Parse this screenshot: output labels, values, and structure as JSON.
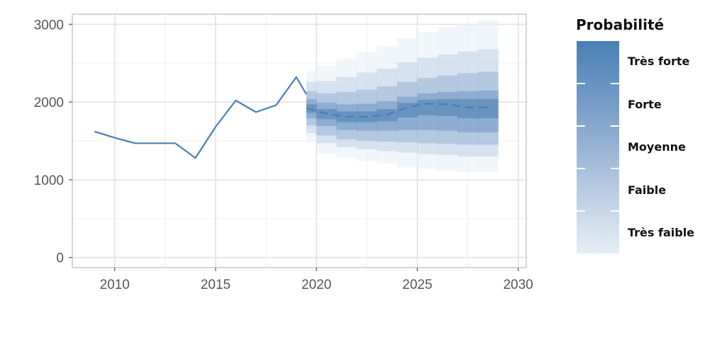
{
  "chart_data": {
    "type": "line",
    "title": "",
    "xlabel": "",
    "ylabel": "",
    "xlim": [
      2007.9,
      2030.4
    ],
    "ylim": [
      -130,
      3130
    ],
    "x_ticks": [
      2010,
      2015,
      2020,
      2025,
      2030
    ],
    "x_tick_labels": [
      "2010",
      "2015",
      "2020",
      "2025",
      "2030"
    ],
    "y_ticks": [
      0,
      1000,
      2000,
      3000
    ],
    "y_tick_labels": [
      "0",
      "1000",
      "2000",
      "3000"
    ],
    "grid": true,
    "line_color": "#4a7fb5",
    "historical": {
      "x": [
        2009,
        2010,
        2011,
        2012,
        2013,
        2014,
        2015,
        2016,
        2017,
        2018,
        2019,
        2019.5
      ],
      "y": [
        1620,
        1540,
        1470,
        1470,
        1470,
        1280,
        1680,
        2020,
        1870,
        1960,
        2320,
        2100
      ]
    },
    "forecast": {
      "line_style": "dashed",
      "x": [
        2019.5,
        2020.5,
        2021.5,
        2022.5,
        2023.5,
        2024.5,
        2025.5,
        2026.5,
        2027.5,
        2028.5
      ],
      "median": [
        1920,
        1850,
        1810,
        1810,
        1840,
        1930,
        1980,
        1970,
        1930,
        1930
      ],
      "bands": [
        {
          "level": "Très faible",
          "low": [
            1480,
            1330,
            1280,
            1240,
            1210,
            1160,
            1140,
            1120,
            1100,
            1100
          ],
          "high": [
            2400,
            2470,
            2560,
            2640,
            2720,
            2820,
            2900,
            2960,
            3010,
            3050
          ]
        },
        {
          "level": "Faible",
          "low": [
            1600,
            1470,
            1420,
            1390,
            1370,
            1350,
            1330,
            1320,
            1300,
            1300
          ],
          "high": [
            2260,
            2270,
            2320,
            2380,
            2430,
            2510,
            2570,
            2610,
            2650,
            2680
          ]
        },
        {
          "level": "Moyenne",
          "low": [
            1700,
            1570,
            1520,
            1500,
            1490,
            1480,
            1470,
            1460,
            1450,
            1450
          ],
          "high": [
            2140,
            2110,
            2130,
            2160,
            2200,
            2260,
            2310,
            2340,
            2370,
            2390
          ]
        },
        {
          "level": "Forte",
          "low": [
            1790,
            1690,
            1640,
            1630,
            1630,
            1640,
            1640,
            1630,
            1610,
            1610
          ],
          "high": [
            2040,
            1990,
            1970,
            1980,
            2010,
            2070,
            2110,
            2130,
            2140,
            2150
          ]
        },
        {
          "level": "Très forte",
          "low": [
            1860,
            1780,
            1740,
            1740,
            1750,
            1800,
            1830,
            1820,
            1790,
            1790
          ],
          "high": [
            1970,
            1910,
            1880,
            1880,
            1910,
            1990,
            2030,
            2040,
            2040,
            2040
          ]
        }
      ]
    },
    "legend": {
      "title": "Probabilité",
      "placement": "right",
      "labels": [
        "Très forte",
        "Forte",
        "Moyenne",
        "Faible",
        "Très faible"
      ],
      "colors": [
        "#4a7fb5",
        "#6f98c4",
        "#97b4d4",
        "#bfd1e5",
        "#e6eef6"
      ]
    }
  }
}
